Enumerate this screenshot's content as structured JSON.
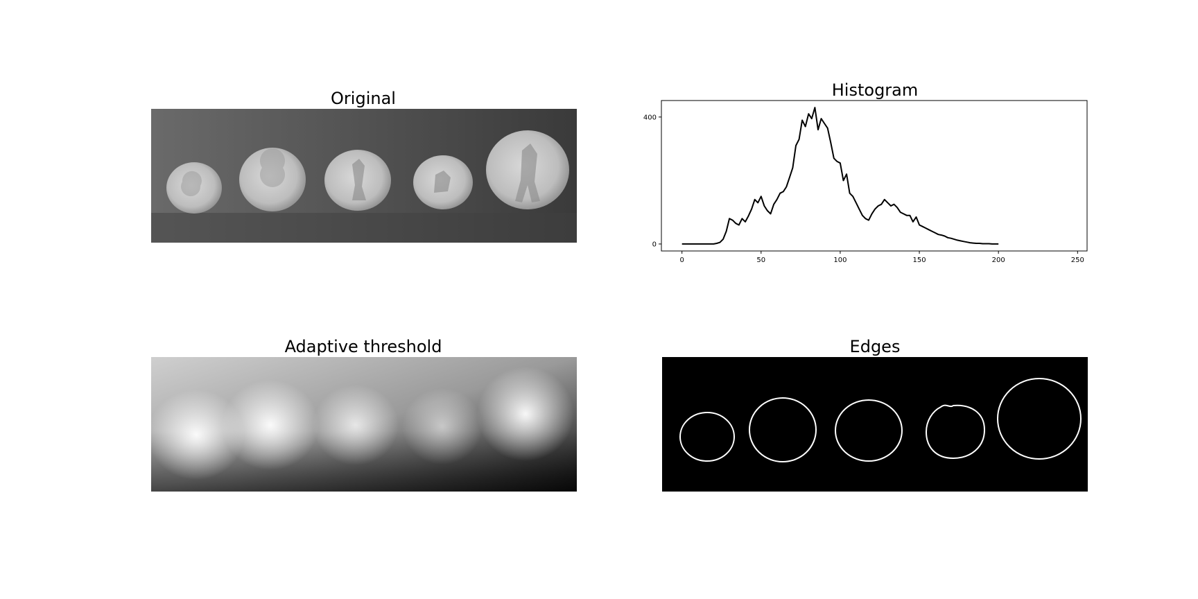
{
  "panels": {
    "original": {
      "title": "Original"
    },
    "histogram": {
      "title": "Histogram"
    },
    "adaptive": {
      "title": "Adaptive threshold"
    },
    "edges": {
      "title": "Edges"
    }
  },
  "colors": {
    "line": "#000000",
    "background": "#ffffff",
    "edge": "#ffffff",
    "edge_bg": "#000000"
  },
  "chart_data": {
    "type": "line",
    "title": "Histogram",
    "xlabel": "",
    "ylabel": "",
    "xlim": [
      -13,
      256
    ],
    "ylim": [
      -22,
      452
    ],
    "xticks": [
      0,
      50,
      100,
      150,
      200,
      250
    ],
    "yticks": [
      0,
      400
    ],
    "x_start": 0,
    "x_step": 2,
    "values": [
      0,
      0,
      0,
      0,
      0,
      0,
      0,
      0,
      0,
      0,
      0,
      2,
      5,
      15,
      40,
      80,
      75,
      65,
      60,
      80,
      70,
      88,
      110,
      140,
      130,
      150,
      120,
      105,
      95,
      125,
      140,
      160,
      165,
      180,
      210,
      240,
      310,
      330,
      390,
      370,
      410,
      395,
      430,
      360,
      395,
      380,
      365,
      320,
      270,
      260,
      255,
      200,
      220,
      160,
      150,
      130,
      110,
      90,
      80,
      75,
      95,
      110,
      120,
      125,
      140,
      130,
      120,
      125,
      115,
      100,
      95,
      90,
      90,
      70,
      85,
      60,
      55,
      50,
      45,
      40,
      35,
      30,
      28,
      25,
      20,
      18,
      15,
      12,
      10,
      8,
      6,
      4,
      3,
      2,
      2,
      1,
      1,
      1,
      0,
      0,
      0
    ],
    "grid": false,
    "legend": "none"
  }
}
